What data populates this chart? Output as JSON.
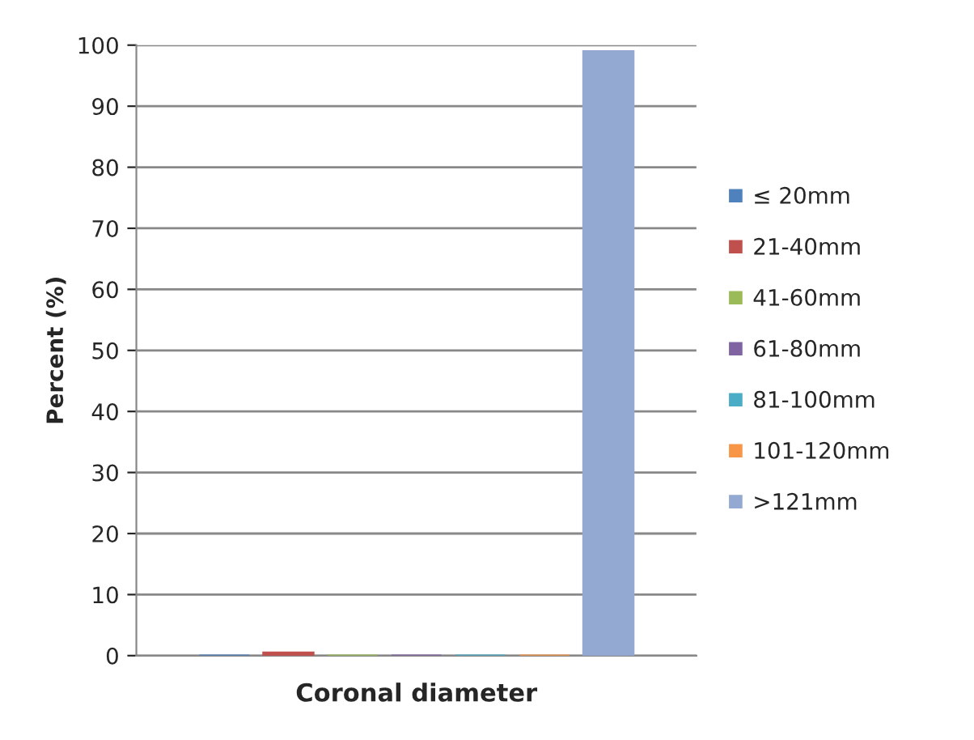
{
  "chart_data": {
    "type": "bar",
    "categories": [
      "Coronal diameter"
    ],
    "ylabel": "Percent (%)",
    "ylim": [
      0,
      100
    ],
    "yticks": [
      0,
      10,
      20,
      30,
      40,
      50,
      60,
      70,
      80,
      90,
      100
    ],
    "grid": "y",
    "legend": "right",
    "series": [
      {
        "name": "≤ 20mm",
        "color": "#4f81bd",
        "values": [
          0
        ]
      },
      {
        "name": "21-40mm",
        "color": "#c0504d",
        "values": [
          0.5
        ]
      },
      {
        "name": "41-60mm",
        "color": "#9bbb59",
        "values": [
          0
        ]
      },
      {
        "name": "61-80mm",
        "color": "#8064a2",
        "values": [
          0
        ]
      },
      {
        "name": "81-100mm",
        "color": "#4bacc6",
        "values": [
          0
        ]
      },
      {
        "name": "101-120mm",
        "color": "#f79646",
        "values": [
          0
        ]
      },
      {
        "name": ">121mm",
        "color": "#94a9d2",
        "values": [
          99
        ]
      }
    ]
  }
}
